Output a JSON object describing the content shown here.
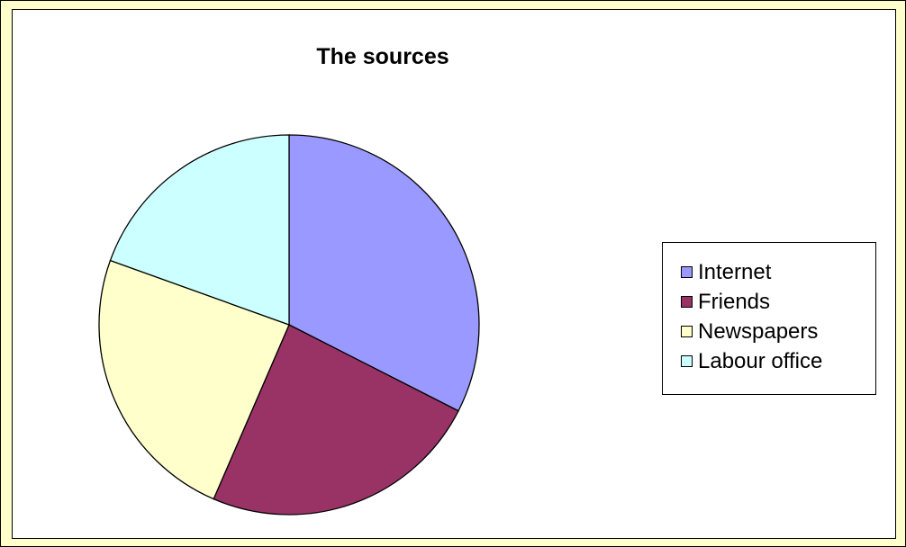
{
  "chart_data": {
    "type": "pie",
    "title": "The sources",
    "categories": [
      "Internet",
      "Friends",
      "Newspapers",
      "Labour office"
    ],
    "values": [
      32.5,
      24,
      24,
      19.5
    ],
    "colors": [
      "#9999ff",
      "#993366",
      "#ffffcc",
      "#ccffff"
    ],
    "legend_position": "right"
  }
}
